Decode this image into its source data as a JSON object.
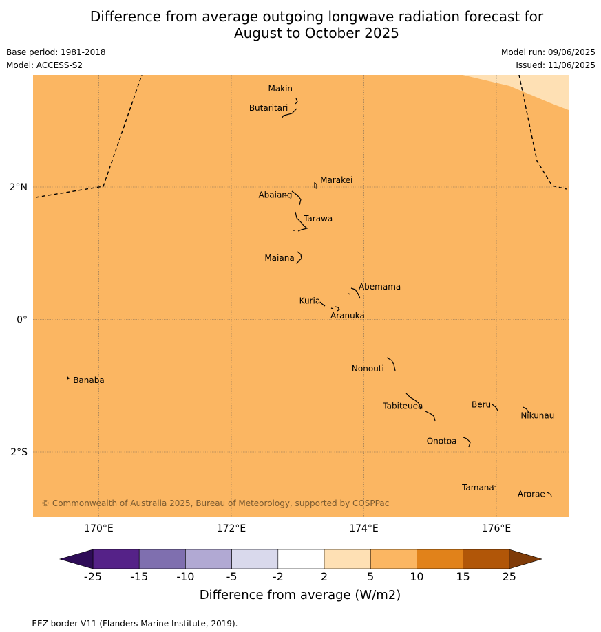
{
  "title": {
    "line1": "Difference from average outgoing longwave radiation forecast for",
    "line2": "August to October 2025"
  },
  "meta": {
    "base_period": "Base period: 1981-2018",
    "model": "Model: ACCESS-S2",
    "model_run": "Model run: 09/06/2025",
    "issued": "Issued: 11/06/2025"
  },
  "map": {
    "background_color": "#fbb662",
    "light_region_color": "#fee0b4",
    "lon_labels": [
      "170°E",
      "172°E",
      "174°E",
      "176°E"
    ],
    "lat_labels": [
      "2°N",
      "0°",
      "2°S"
    ],
    "islands": [
      {
        "name": "Makin",
        "lon": 172.95,
        "lat": 3.35
      },
      {
        "name": "Butaritari",
        "lon": 172.85,
        "lat": 3.1
      },
      {
        "name": "Marakei",
        "lon": 173.3,
        "lat": 2.0
      },
      {
        "name": "Abaiang",
        "lon": 172.95,
        "lat": 1.85
      },
      {
        "name": "Tarawa",
        "lon": 173.05,
        "lat": 1.4
      },
      {
        "name": "Maiana",
        "lon": 172.98,
        "lat": 0.92
      },
      {
        "name": "Abemama",
        "lon": 173.88,
        "lat": 0.4
      },
      {
        "name": "Kuria",
        "lon": 173.42,
        "lat": 0.24
      },
      {
        "name": "Aranuka",
        "lon": 173.6,
        "lat": 0.17
      },
      {
        "name": "Nonouti",
        "lon": 174.42,
        "lat": -0.67
      },
      {
        "name": "Banaba",
        "lon": 169.55,
        "lat": -0.87
      },
      {
        "name": "Tabiteuea",
        "lon": 174.85,
        "lat": -1.35
      },
      {
        "name": "Beru",
        "lon": 176.0,
        "lat": -1.33
      },
      {
        "name": "Nikunau",
        "lon": 176.45,
        "lat": -1.35
      },
      {
        "name": "Onotoa",
        "lon": 175.55,
        "lat": -1.85
      },
      {
        "name": "Tamana",
        "lon": 175.98,
        "lat": -2.5
      },
      {
        "name": "Arorae",
        "lon": 176.82,
        "lat": -2.65
      }
    ],
    "copyright": "© Commonwealth of Australia 2025, Bureau of Meteorology, supported by COSPPac"
  },
  "colorbar": {
    "label": "Difference from average (W/m2)",
    "ticks": [
      "-25",
      "-15",
      "-10",
      "-5",
      "-2",
      "2",
      "5",
      "10",
      "15",
      "25"
    ],
    "colors": [
      "#552288",
      "#7f6faf",
      "#b1a9d3",
      "#d9d9ec",
      "#ffffff",
      "#fee0b4",
      "#fbb662",
      "#e1821a",
      "#b15608"
    ],
    "under_color": "#2e0c57",
    "over_color": "#7f3b08"
  },
  "footer": "--  --  -- EEZ border V11 (Flanders Marine Institute, 2019)."
}
